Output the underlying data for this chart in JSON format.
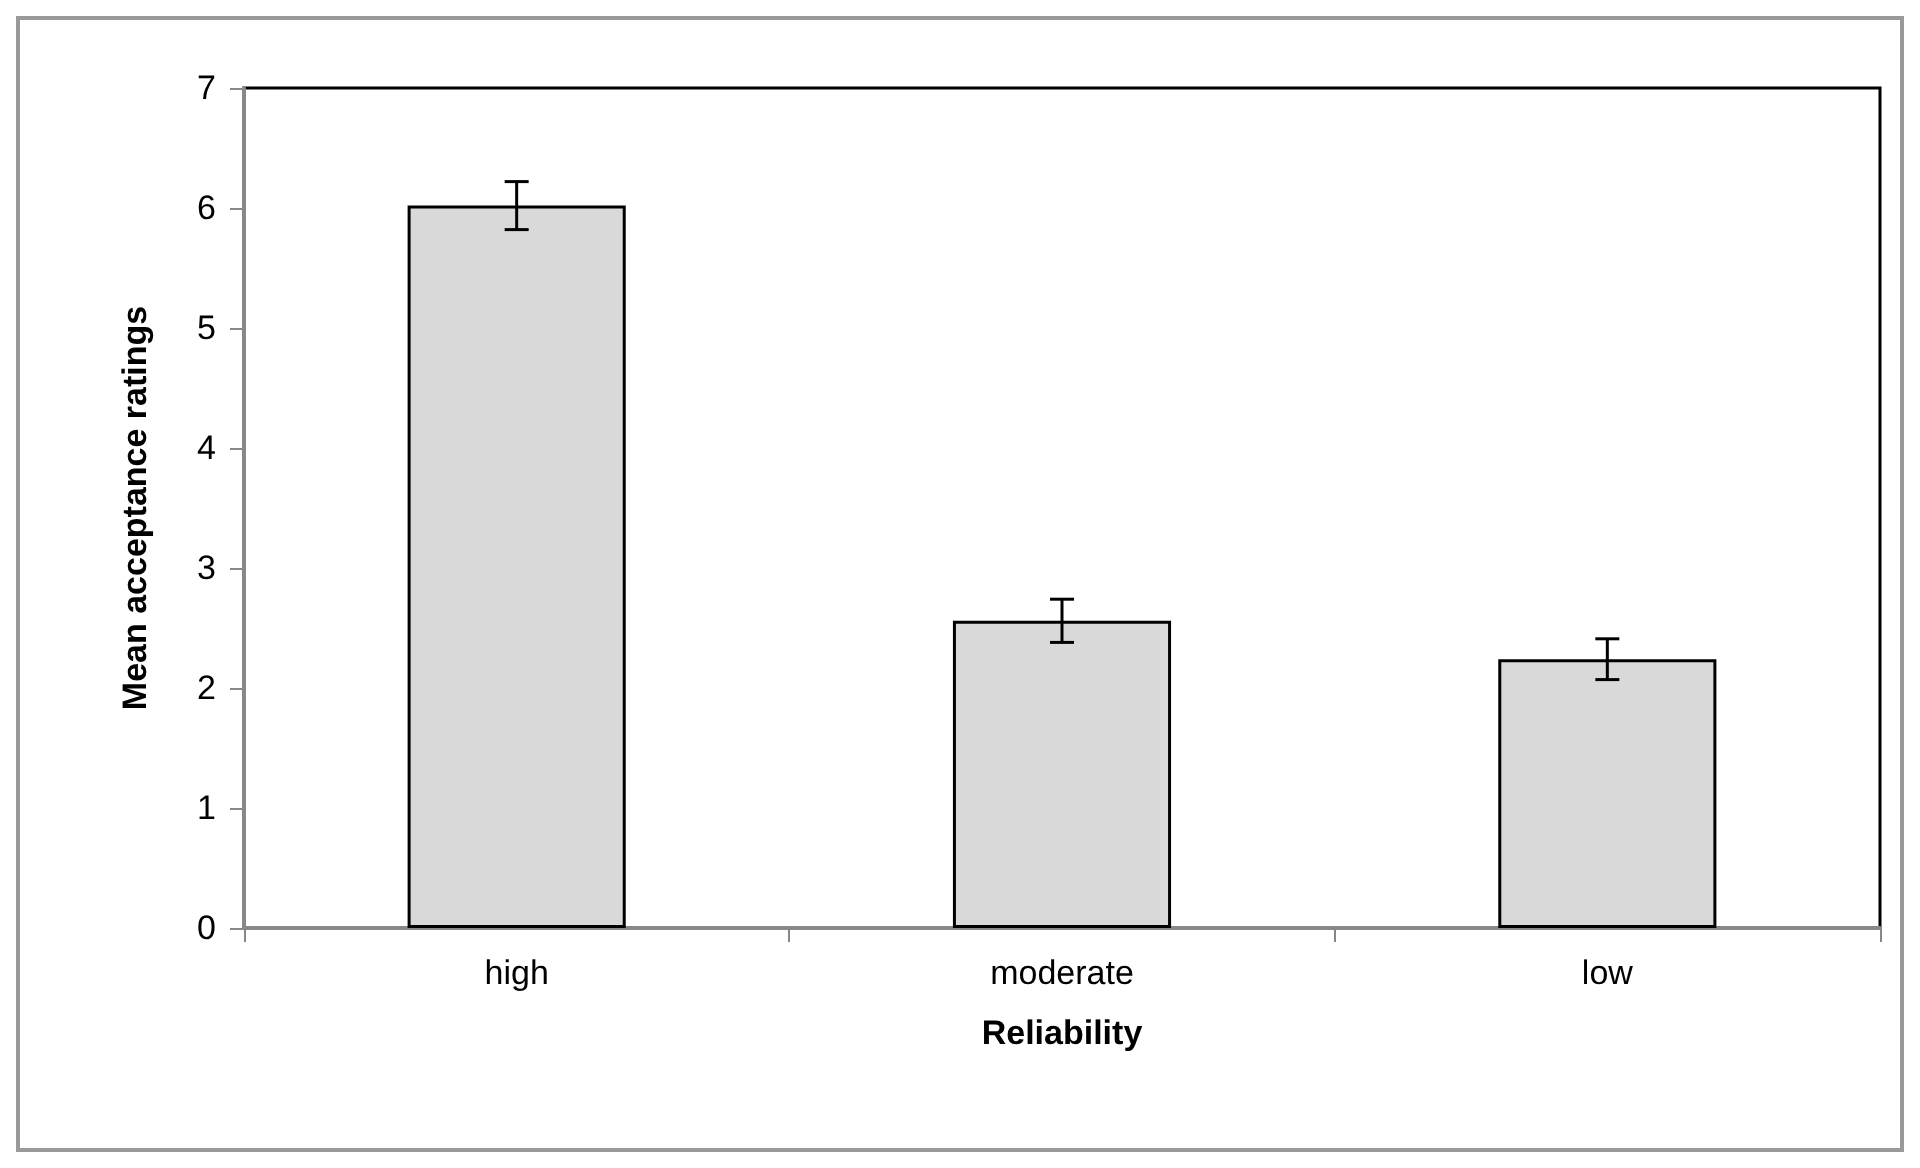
{
  "chart_data": {
    "type": "bar",
    "xlabel": "Reliability",
    "ylabel": "Mean acceptance ratings",
    "categories": [
      "high",
      "moderate",
      "low"
    ],
    "values": [
      6.02,
      2.56,
      2.24
    ],
    "errors": [
      0.2,
      0.18,
      0.17
    ],
    "color": "#d9d9d9",
    "ylim": [
      0,
      7
    ],
    "yticks": [
      0,
      1,
      2,
      3,
      4,
      5,
      6,
      7
    ],
    "grid": false
  }
}
